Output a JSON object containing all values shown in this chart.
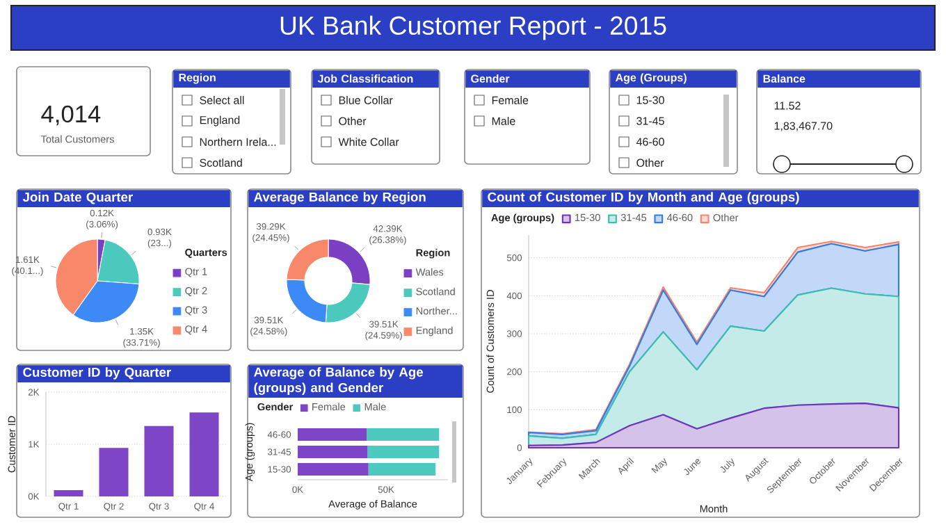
{
  "chart_data": [
    {
      "type": "other",
      "title": "UK Bank Customer Report - 2015"
    },
    {
      "type": "other",
      "annotations": [
        "4,014",
        "Total Customers"
      ]
    },
    {
      "type": "other",
      "title": "Region",
      "annotations": [
        "Select all",
        "England",
        "Northern Irela...",
        "Scotland"
      ]
    },
    {
      "type": "other",
      "title": "Job Classification",
      "annotations": [
        "Blue Collar",
        "Other",
        "White Collar"
      ]
    },
    {
      "type": "other",
      "title": "Gender",
      "annotations": [
        "Female",
        "Male"
      ]
    },
    {
      "type": "other",
      "title": "Age (Groups)",
      "annotations": [
        "15-30",
        "31-45",
        "46-60",
        "Other"
      ]
    },
    {
      "type": "other",
      "title": "Balance",
      "annotations": [
        "11.52",
        "1,83,467.70"
      ]
    },
    {
      "type": "pie",
      "title": "Join Date Quarter",
      "categories": [
        "Qtr 1",
        "Qtr 2",
        "Qtr 3",
        "Qtr 4"
      ],
      "values": [
        120,
        930,
        1350,
        1610
      ],
      "value_labels": [
        "0.12K (3.06%)",
        "0.93K (23...)",
        "1.35K (33.71%)",
        "1.61K (40.1...)"
      ],
      "colors": [
        "#7b3fc4",
        "#4cc9bd",
        "#3d8af7",
        "#f7896a"
      ],
      "legend_title": "Quarters",
      "legend": "right"
    },
    {
      "type": "donut",
      "title": "Average Balance by Region",
      "categories": [
        "Wales",
        "Scotland",
        "Norther...",
        "England"
      ],
      "values": [
        42390,
        39510,
        39510,
        39290
      ],
      "value_labels": [
        "42.39K (26.38%)",
        "39.51K (24.59%)",
        "39.51K (24.58%)",
        "39.29K (24.45%)"
      ],
      "colors": [
        "#7b3fc4",
        "#4cc9bd",
        "#3d8af7",
        "#f7896a"
      ],
      "legend_title": "Region",
      "legend": "right"
    },
    {
      "type": "area",
      "stacked": true,
      "title": "Count of Customer ID by Month and Age (groups)",
      "xlabel": "Month",
      "ylabel": "Count of Customers ID",
      "legend_title": "Age (groups)",
      "legend": "top left",
      "grid": "y",
      "categories": [
        "January",
        "February",
        "March",
        "April",
        "May",
        "June",
        "July",
        "August",
        "September",
        "October",
        "November",
        "December"
      ],
      "ylim": [
        0,
        560
      ],
      "yticks": [
        0,
        100,
        200,
        300,
        400,
        500
      ],
      "series": [
        {
          "name": "15-30",
          "color": "#6f33bd",
          "values": [
            6,
            7,
            14,
            58,
            87,
            50,
            78,
            104,
            112,
            115,
            117,
            105
          ]
        },
        {
          "name": "31-45",
          "color": "#3dbdb1",
          "values": [
            25,
            18,
            21,
            142,
            218,
            155,
            242,
            203,
            290,
            305,
            288,
            293
          ]
        },
        {
          "name": "46-60",
          "color": "#2f7ce8",
          "values": [
            9,
            10,
            10,
            15,
            110,
            67,
            95,
            91,
            113,
            117,
            113,
            137
          ]
        },
        {
          "name": "Other",
          "color": "#f4836b",
          "values": [
            1,
            2,
            3,
            5,
            8,
            6,
            6,
            10,
            12,
            6,
            9,
            7
          ]
        }
      ]
    },
    {
      "type": "bar",
      "title": "Customer ID by Quarter",
      "ylabel": "Customer ID",
      "grid": "y",
      "categories": [
        "Qtr 1",
        "Qtr 2",
        "Qtr 3",
        "Qtr 4"
      ],
      "values": [
        120,
        930,
        1350,
        1610
      ],
      "color": "#7e45c6",
      "ylim": [
        0,
        2000
      ],
      "yticks": [
        {
          "value": 0,
          "label": "0K"
        },
        {
          "value": 1000,
          "label": "1K"
        },
        {
          "value": 2000,
          "label": "2K"
        }
      ]
    },
    {
      "type": "bar",
      "orientation": "horizontal",
      "stacked": true,
      "title": "Average of Balance by Age (groups) and Gender",
      "xlabel": "Average of Balance",
      "ylabel": "Age (groups)",
      "legend_title": "Gender",
      "legend": "top left",
      "categories": [
        "46-60",
        "31-45",
        "15-30"
      ],
      "xlim": [
        0,
        85000
      ],
      "xticks": [
        {
          "value": 0,
          "label": "0K"
        },
        {
          "value": 50000,
          "label": "50K"
        }
      ],
      "series": [
        {
          "name": "Female",
          "color": "#7e45c6",
          "values": [
            39000,
            39500,
            40000
          ]
        },
        {
          "name": "Male",
          "color": "#4ec9c0",
          "values": [
            41000,
            40500,
            38000
          ]
        }
      ]
    }
  ]
}
